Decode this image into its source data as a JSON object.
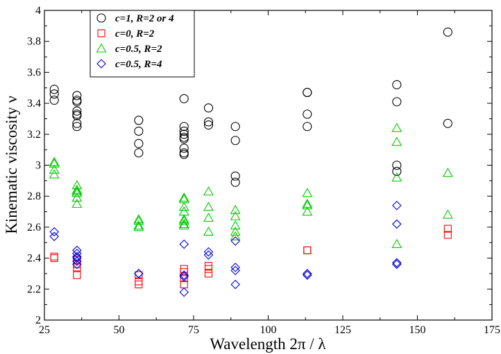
{
  "chart_data": {
    "type": "scatter",
    "xlabel": "Wavelength  2π / λ",
    "ylabel": "Kinematic viscosity  ν",
    "xlim": [
      25,
      175
    ],
    "ylim": [
      2,
      4
    ],
    "xticks": [
      25,
      50,
      75,
      100,
      125,
      150,
      175
    ],
    "yticks": [
      2,
      2.2,
      2.4,
      2.6,
      2.8,
      3,
      3.2,
      3.4,
      3.6,
      3.8,
      4
    ],
    "ytick_labels": [
      "2",
      "2.2",
      "2.4",
      "2.6",
      "2.8",
      "3",
      "3.2",
      "3.4",
      "3.6",
      "3.8",
      "4"
    ],
    "grid": false,
    "legend_position": "top-left",
    "series": [
      {
        "name": "c=1, R=2 or 4",
        "marker": "circle",
        "color": "#000000",
        "x": [
          28.3,
          28.3,
          28.3,
          35.9,
          35.9,
          35.9,
          35.9,
          35.9,
          35.9,
          35.9,
          35.9,
          56.6,
          56.6,
          56.6,
          56.6,
          71.8,
          71.8,
          71.8,
          71.8,
          71.8,
          71.8,
          71.8,
          71.8,
          71.8,
          80,
          80,
          80,
          89,
          89,
          89,
          89,
          113.1,
          113.1,
          113.1,
          113.1,
          143.1,
          143.1,
          143.1,
          143.1,
          160.2,
          160.2
        ],
        "y": [
          3.49,
          3.46,
          3.42,
          3.45,
          3.42,
          3.41,
          3.35,
          3.33,
          3.32,
          3.27,
          3.25,
          3.29,
          3.22,
          3.14,
          3.08,
          3.43,
          3.25,
          3.22,
          3.2,
          3.18,
          3.17,
          3.11,
          3.08,
          3.07,
          3.37,
          3.28,
          3.26,
          3.25,
          3.16,
          2.93,
          2.89,
          3.47,
          3.47,
          3.33,
          3.25,
          3.52,
          3.41,
          3.0,
          2.96,
          3.86,
          3.27
        ]
      },
      {
        "name": "c=0, R=2",
        "marker": "square",
        "color": "#ff0000",
        "x": [
          28.3,
          28.3,
          35.9,
          35.9,
          35.9,
          35.9,
          56.6,
          56.6,
          56.6,
          71.8,
          71.8,
          71.8,
          71.8,
          80,
          80,
          80,
          113.1,
          113.1,
          160.2,
          160.2
        ],
        "y": [
          2.41,
          2.4,
          2.39,
          2.36,
          2.34,
          2.29,
          2.29,
          2.25,
          2.23,
          2.33,
          2.31,
          2.27,
          2.23,
          2.35,
          2.33,
          2.3,
          2.45,
          2.45,
          2.59,
          2.55
        ]
      },
      {
        "name": "c=0.5, R=2",
        "marker": "triangle",
        "color": "#00cc00",
        "x": [
          28.3,
          28.3,
          28.3,
          28.3,
          35.9,
          35.9,
          35.9,
          35.9,
          35.9,
          35.9,
          56.6,
          56.6,
          56.6,
          56.6,
          71.8,
          71.8,
          71.8,
          71.8,
          71.8,
          71.8,
          71.8,
          71.8,
          80,
          80,
          80,
          80,
          89,
          89,
          89,
          89,
          89,
          113.1,
          113.1,
          113.1,
          113.1,
          143.1,
          143.1,
          143.1,
          143.1,
          160.2,
          160.2
        ],
        "y": [
          3.02,
          3.01,
          2.97,
          2.94,
          2.87,
          2.84,
          2.83,
          2.82,
          2.79,
          2.75,
          2.65,
          2.64,
          2.61,
          2.6,
          2.79,
          2.78,
          2.73,
          2.7,
          2.65,
          2.64,
          2.62,
          2.61,
          2.83,
          2.73,
          2.66,
          2.57,
          2.71,
          2.67,
          2.61,
          2.57,
          2.54,
          2.82,
          2.75,
          2.74,
          2.7,
          3.24,
          3.15,
          2.92,
          2.49,
          2.95,
          2.68
        ]
      },
      {
        "name": "c=0.5, R=4",
        "marker": "diamond",
        "color": "#0000dd",
        "x": [
          28.3,
          28.3,
          35.9,
          35.9,
          35.9,
          35.9,
          35.9,
          35.9,
          56.6,
          56.6,
          71.8,
          71.8,
          71.8,
          71.8,
          80,
          80,
          89,
          89,
          89,
          89,
          113.1,
          113.1,
          143.1,
          143.1,
          143.1,
          143.1
        ],
        "y": [
          2.57,
          2.54,
          2.45,
          2.43,
          2.41,
          2.4,
          2.38,
          2.36,
          2.3,
          2.3,
          2.49,
          2.29,
          2.28,
          2.18,
          2.44,
          2.42,
          2.51,
          2.34,
          2.32,
          2.23,
          2.3,
          2.29,
          2.74,
          2.62,
          2.37,
          2.36
        ]
      }
    ]
  }
}
